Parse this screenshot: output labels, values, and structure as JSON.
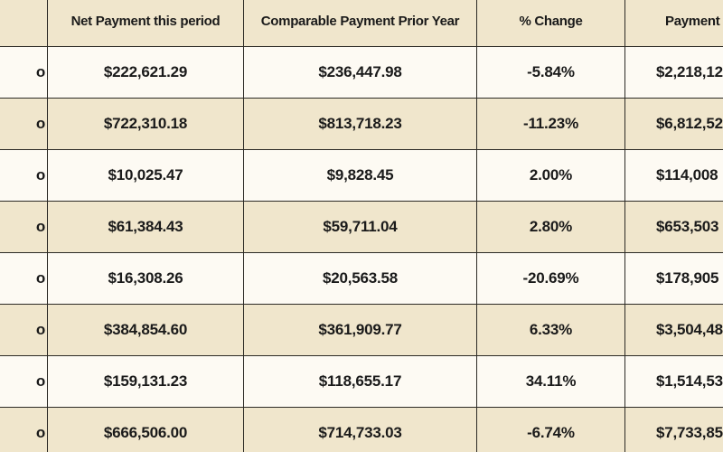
{
  "table": {
    "headers": [
      "",
      "Net Payment this period",
      "Comparable Payment Prior Year",
      "% Change",
      "Payment T"
    ],
    "rows": [
      {
        "marker": "o",
        "net": "$222,621.29",
        "prior": "$236,447.98",
        "change": "-5.84%",
        "ytd": "$2,218,12"
      },
      {
        "marker": "o",
        "net": "$722,310.18",
        "prior": "$813,718.23",
        "change": "-11.23%",
        "ytd": "$6,812,52"
      },
      {
        "marker": "o",
        "net": "$10,025.47",
        "prior": "$9,828.45",
        "change": "2.00%",
        "ytd": "$114,008"
      },
      {
        "marker": "o",
        "net": "$61,384.43",
        "prior": "$59,711.04",
        "change": "2.80%",
        "ytd": "$653,503"
      },
      {
        "marker": "o",
        "net": "$16,308.26",
        "prior": "$20,563.58",
        "change": "-20.69%",
        "ytd": "$178,905"
      },
      {
        "marker": "o",
        "net": "$384,854.60",
        "prior": "$361,909.77",
        "change": "6.33%",
        "ytd": "$3,504,48"
      },
      {
        "marker": "o",
        "net": "$159,131.23",
        "prior": "$118,655.17",
        "change": "34.11%",
        "ytd": "$1,514,53"
      },
      {
        "marker": "o",
        "net": "$666,506.00",
        "prior": "$714,733.03",
        "change": "-6.74%",
        "ytd": "$7,733,85"
      }
    ]
  }
}
